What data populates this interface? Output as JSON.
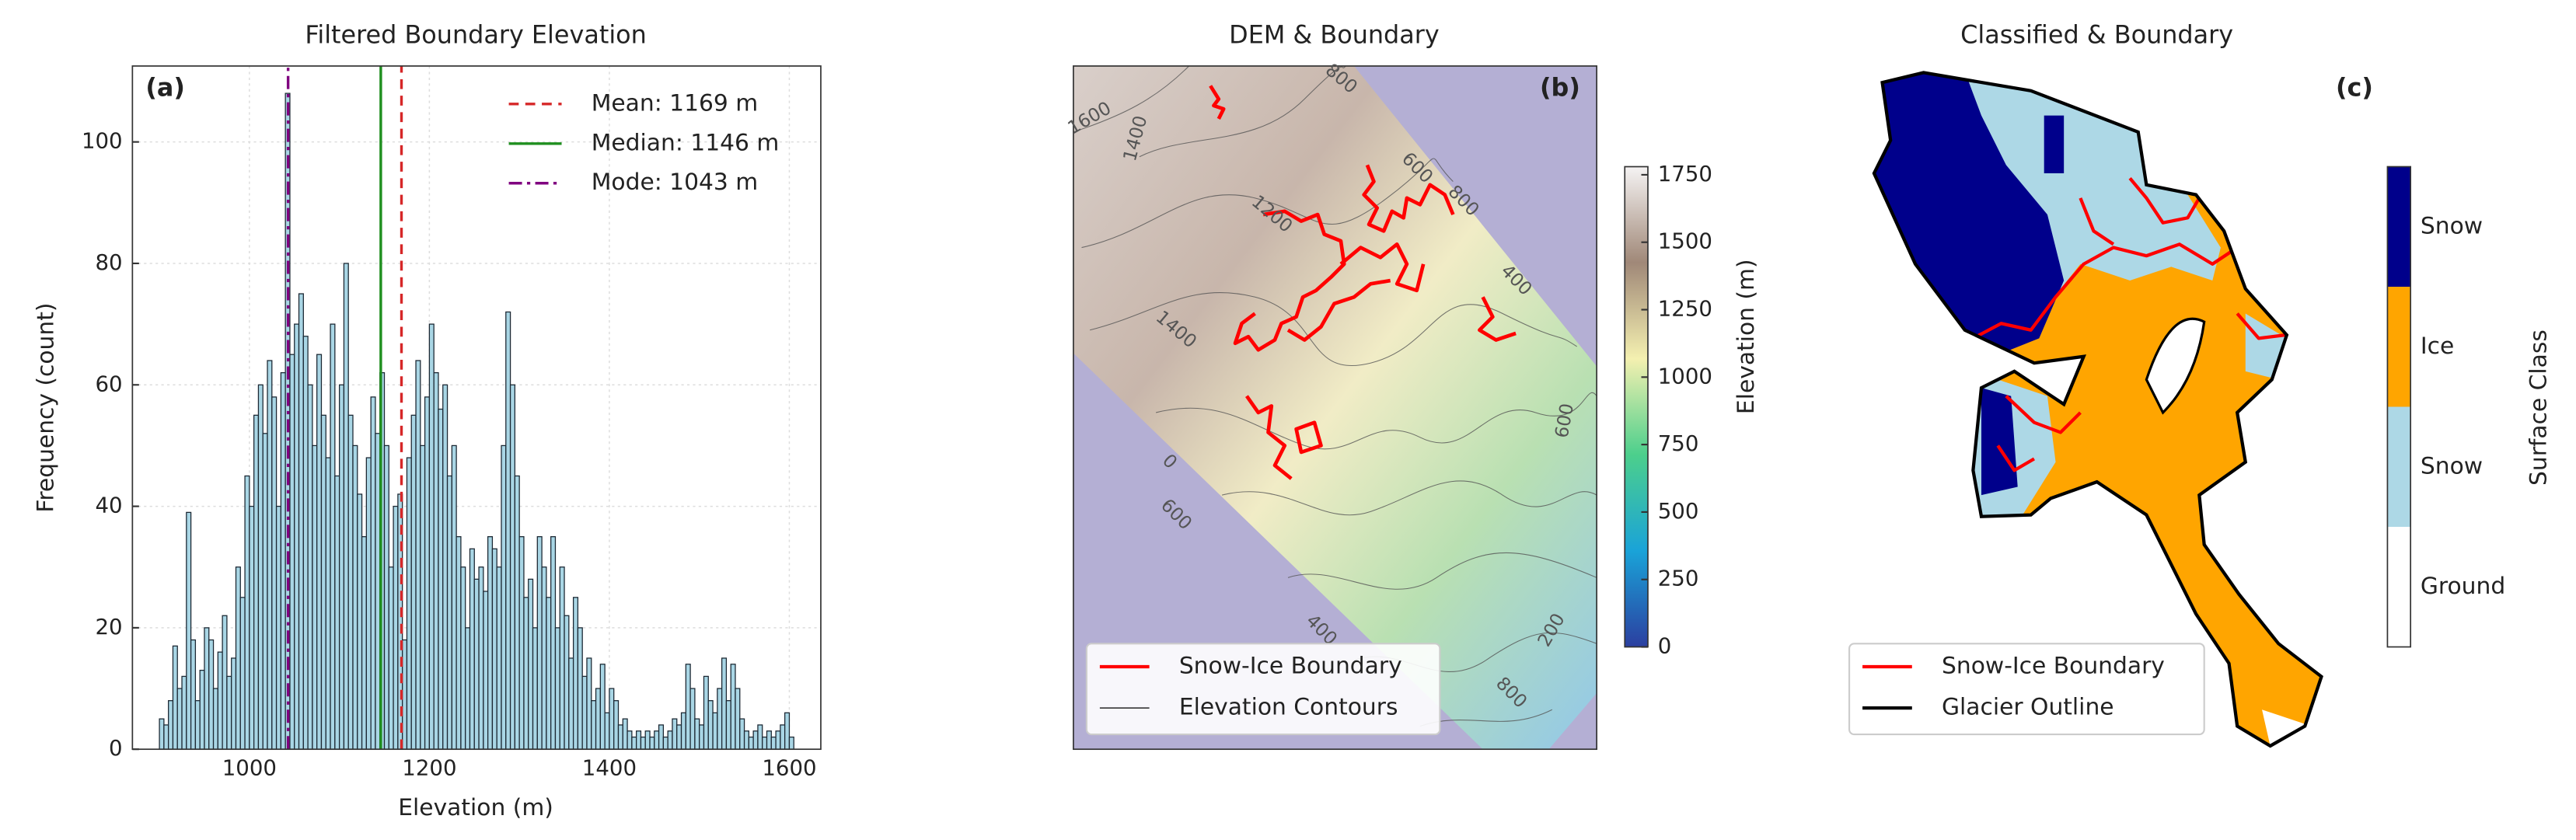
{
  "chart_data": [
    {
      "type": "histogram",
      "title": "Filtered Boundary Elevation",
      "panel_label": "(a)",
      "x_label": "Elevation (m)",
      "y_label": "Frequency (count)",
      "bins": [
        900,
        905,
        910,
        915,
        920,
        925,
        930,
        935,
        940,
        945,
        950,
        955,
        960,
        965,
        970,
        975,
        980,
        985,
        990,
        995,
        1000,
        1005,
        1010,
        1015,
        1020,
        1025,
        1030,
        1035,
        1040,
        1045,
        1050,
        1055,
        1060,
        1065,
        1070,
        1075,
        1080,
        1085,
        1090,
        1095,
        1100,
        1105,
        1110,
        1115,
        1120,
        1125,
        1130,
        1135,
        1140,
        1145,
        1150,
        1155,
        1160,
        1165,
        1170,
        1175,
        1180,
        1185,
        1190,
        1195,
        1200,
        1205,
        1210,
        1215,
        1220,
        1225,
        1230,
        1235,
        1240,
        1245,
        1250,
        1255,
        1260,
        1265,
        1270,
        1275,
        1280,
        1285,
        1290,
        1295,
        1300,
        1305,
        1310,
        1315,
        1320,
        1325,
        1330,
        1335,
        1340,
        1345,
        1350,
        1355,
        1360,
        1365,
        1370,
        1375,
        1380,
        1385,
        1390,
        1395,
        1400,
        1405,
        1410,
        1415,
        1420,
        1425,
        1430,
        1435,
        1440,
        1445,
        1450,
        1455,
        1460,
        1465,
        1470,
        1475,
        1480,
        1485,
        1490,
        1495,
        1500,
        1505,
        1510,
        1515,
        1520,
        1525,
        1530,
        1535,
        1540,
        1545,
        1550,
        1555,
        1560,
        1565,
        1570,
        1575,
        1580,
        1585,
        1590,
        1595,
        1600,
        1605
      ],
      "counts": [
        5,
        4,
        8,
        17,
        10,
        12,
        39,
        18,
        8,
        13,
        20,
        18,
        10,
        16,
        22,
        12,
        15,
        30,
        25,
        45,
        40,
        55,
        60,
        52,
        64,
        58,
        40,
        62,
        108,
        65,
        70,
        75,
        68,
        60,
        50,
        65,
        55,
        48,
        70,
        45,
        60,
        80,
        55,
        50,
        42,
        35,
        48,
        58,
        52,
        62,
        50,
        30,
        40,
        42,
        18,
        48,
        55,
        64,
        50,
        58,
        70,
        62,
        56,
        60,
        45,
        50,
        35,
        30,
        20,
        33,
        28,
        30,
        26,
        35,
        33,
        30,
        50,
        72,
        60,
        45,
        35,
        25,
        28,
        20,
        35,
        30,
        25,
        35,
        20,
        30,
        22,
        15,
        25,
        20,
        12,
        15,
        8,
        10,
        14,
        6,
        10,
        8,
        4,
        5,
        3,
        2,
        3,
        2,
        3,
        2,
        3,
        4,
        2,
        3,
        5,
        4,
        6,
        14,
        10,
        5,
        4,
        12,
        8,
        6,
        10,
        15,
        8,
        14,
        10,
        5,
        3,
        2,
        3,
        4,
        2,
        3,
        2,
        3,
        4,
        6,
        2
      ],
      "color": "#a9d6e5",
      "edge_color": "#1c2833",
      "lines": [
        {
          "name": "Mean: 1169 m",
          "value": 1169,
          "color": "#d62728",
          "dash": "dashed"
        },
        {
          "name": "Median: 1146 m",
          "value": 1146,
          "color": "#1f8f1f",
          "dash": "solid"
        },
        {
          "name": "Mode: 1043 m",
          "value": 1043,
          "color": "#800080",
          "dash": "dashdot"
        }
      ],
      "xlim": [
        870,
        1635
      ],
      "ylim": [
        0,
        112.5
      ],
      "xticks": [
        1000,
        1200,
        1400,
        1600
      ],
      "yticks": [
        0,
        20,
        40,
        60,
        80,
        100
      ],
      "grid": true,
      "legend": "upper right"
    },
    {
      "type": "map",
      "title": "DEM & Boundary",
      "panel_label": "(b)",
      "colorbar": {
        "label": "Elevation (m)",
        "lim": [
          0,
          1780
        ],
        "ticks": [
          0,
          250,
          500,
          750,
          1000,
          1250,
          1500,
          1750
        ],
        "colormap": [
          "#2b3fa0",
          "#1aa3d8",
          "#4ccf8c",
          "#f4f0b0",
          "#a08878",
          "#f5f3f3"
        ]
      },
      "contour_labels": [
        1600,
        1400,
        1200,
        1400,
        800,
        600,
        800,
        400,
        600,
        0,
        600,
        400,
        200,
        800
      ],
      "legend_entries": [
        {
          "name": "Snow-Ice Boundary",
          "color": "#ff0000"
        },
        {
          "name": "Elevation Contours",
          "color": "#444444"
        }
      ],
      "legend": "lower left"
    },
    {
      "type": "map",
      "title": "Classified & Boundary",
      "panel_label": "(c)",
      "colorbar": {
        "label": "Surface Class",
        "categories": [
          "Snow",
          "Ice",
          "Snow",
          "Ground"
        ],
        "colors": [
          "#00008b",
          "#ffa500",
          "#add8e6",
          "#ffffff"
        ]
      },
      "legend_entries": [
        {
          "name": "Snow-Ice Boundary",
          "color": "#ff0000"
        },
        {
          "name": "Glacier Outline",
          "color": "#000000"
        }
      ],
      "legend": "lower left"
    }
  ]
}
